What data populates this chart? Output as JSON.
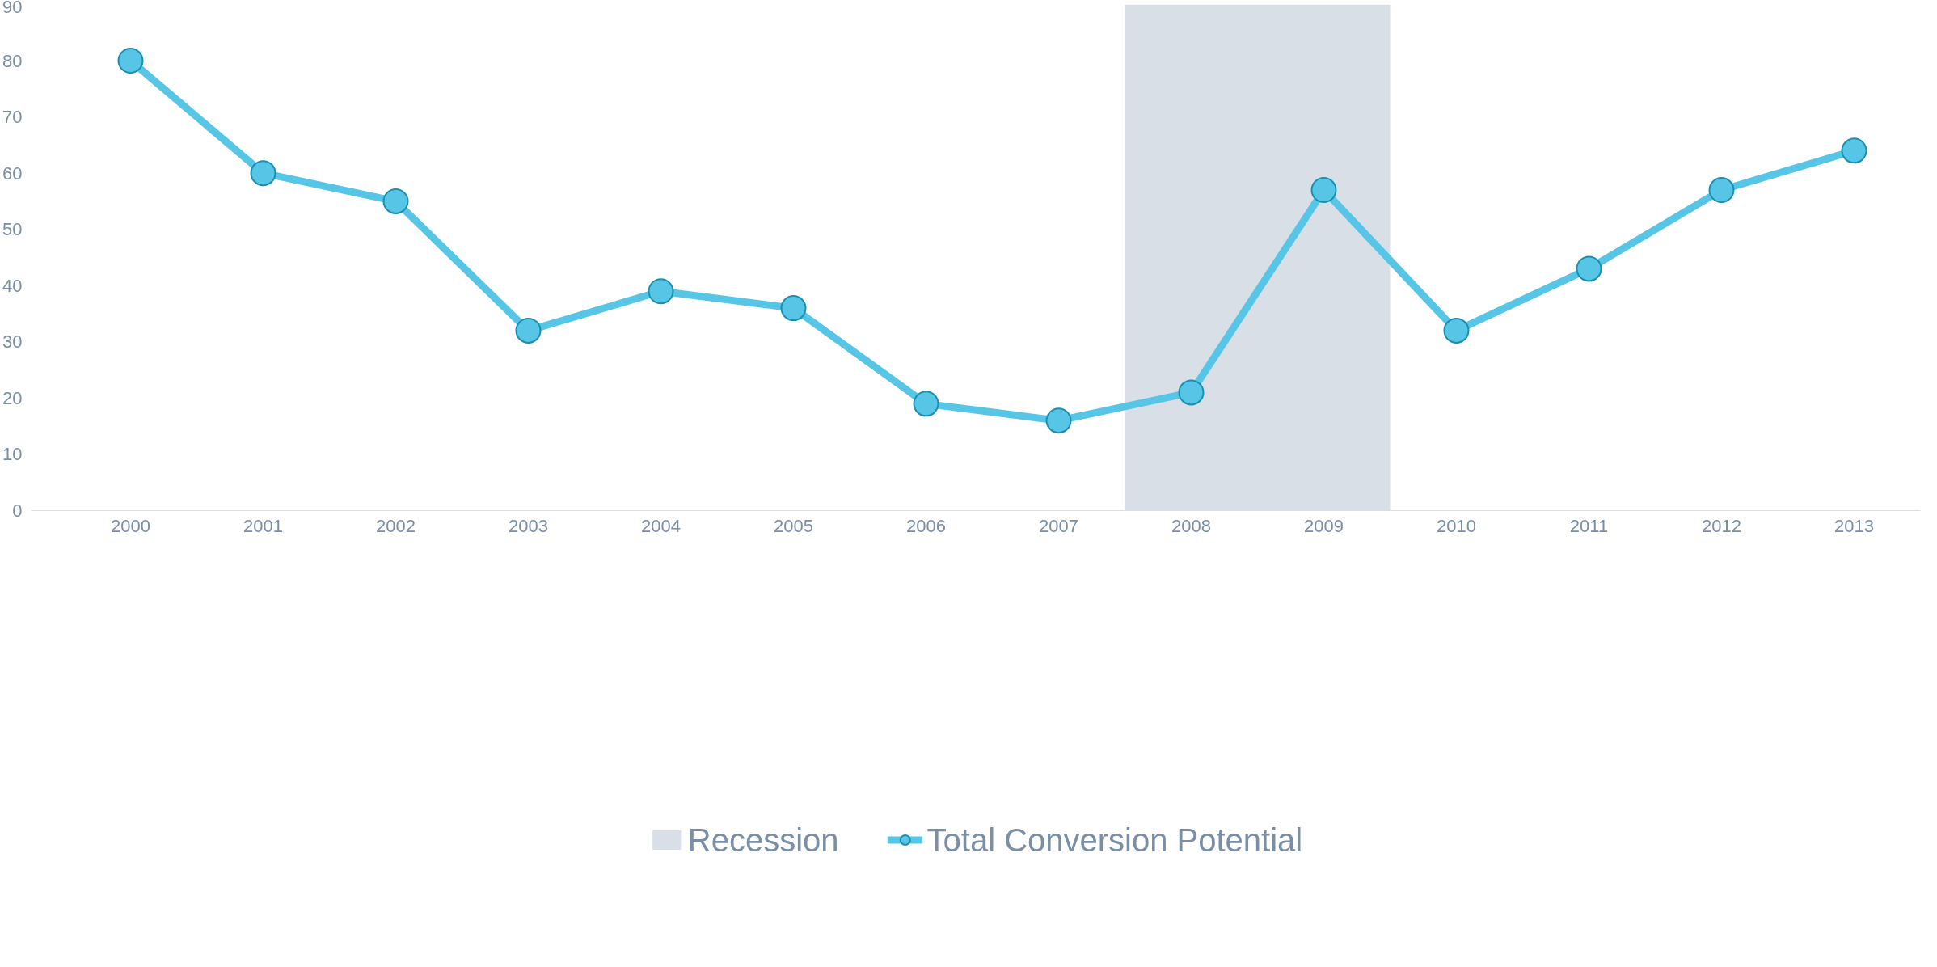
{
  "chart_data": {
    "type": "line",
    "x": [
      2000,
      2001,
      2002,
      2003,
      2004,
      2005,
      2006,
      2007,
      2008,
      2009,
      2010,
      2011,
      2012,
      2013
    ],
    "series": [
      {
        "name": "Total Conversion Potential",
        "color": "#56c5e6",
        "values": [
          80,
          60,
          55,
          32,
          39,
          36,
          19,
          16,
          21,
          57,
          32,
          43,
          57,
          64
        ]
      }
    ],
    "xlim": [
      1999.25,
      2013.5
    ],
    "xticks": [
      2000,
      2001,
      2002,
      2003,
      2004,
      2005,
      2006,
      2007,
      2008,
      2009,
      2010,
      2011,
      2012,
      2013
    ],
    "ylim": [
      0,
      90
    ],
    "yticks": [
      0,
      10,
      20,
      30,
      40,
      50,
      60,
      70,
      80,
      90
    ],
    "bands": [
      {
        "axis": "x",
        "from": 2007.5,
        "to": 2009.5,
        "label": "Recession",
        "color": "#d8dfe6"
      }
    ],
    "marker": "circle",
    "line_style": "solid",
    "grid": false,
    "legend": "bottom"
  }
}
